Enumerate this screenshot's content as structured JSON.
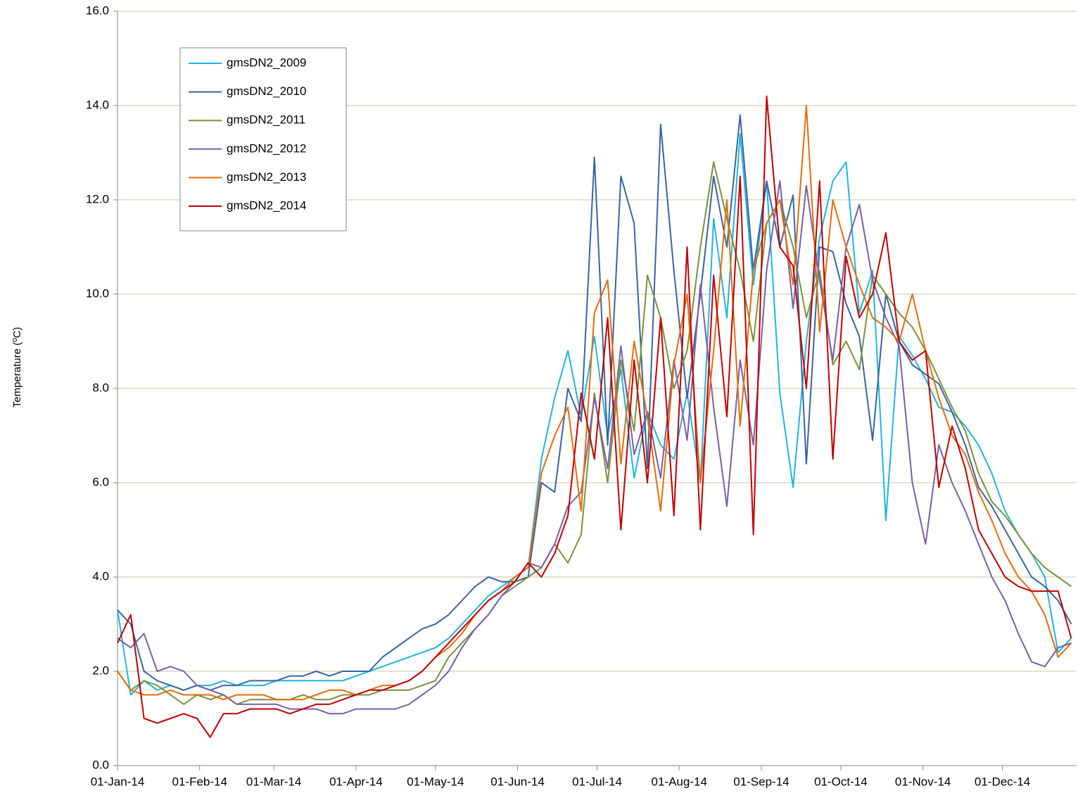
{
  "chart_data": {
    "type": "line",
    "y_label": "Temperature (ºC)",
    "x": [
      0,
      5,
      10,
      15,
      20,
      25,
      30,
      35,
      40,
      45,
      50,
      55,
      60,
      65,
      70,
      75,
      80,
      85,
      90,
      95,
      100,
      105,
      110,
      115,
      120,
      125,
      130,
      135,
      140,
      145,
      150,
      155,
      160,
      165,
      170,
      175,
      180,
      185,
      190,
      195,
      200,
      205,
      210,
      215,
      220,
      225,
      230,
      235,
      240,
      245,
      250,
      255,
      260,
      265,
      270,
      275,
      280,
      285,
      290,
      295,
      300,
      305,
      310,
      315,
      320,
      325,
      330,
      335,
      340,
      345,
      350,
      355,
      360
    ],
    "xlim": [
      0,
      362
    ],
    "xticks": [
      {
        "value": 0,
        "label": "01-Jan-14"
      },
      {
        "value": 31,
        "label": "01-Feb-14"
      },
      {
        "value": 59,
        "label": "01-Mar-14"
      },
      {
        "value": 90,
        "label": "01-Apr-14"
      },
      {
        "value": 120,
        "label": "01-May-14"
      },
      {
        "value": 151,
        "label": "01-Jun-14"
      },
      {
        "value": 181,
        "label": "01-Jul-14"
      },
      {
        "value": 212,
        "label": "01-Aug-14"
      },
      {
        "value": 243,
        "label": "01-Sep-14"
      },
      {
        "value": 273,
        "label": "01-Oct-14"
      },
      {
        "value": 304,
        "label": "01-Nov-14"
      },
      {
        "value": 334,
        "label": "01-Dec-14"
      }
    ],
    "ylim": [
      0,
      16
    ],
    "yticks": [
      {
        "value": 0,
        "label": "0.0"
      },
      {
        "value": 2,
        "label": "2.0"
      },
      {
        "value": 4,
        "label": "4.0"
      },
      {
        "value": 6,
        "label": "6.0"
      },
      {
        "value": 8,
        "label": "8.0"
      },
      {
        "value": 10,
        "label": "10.0"
      },
      {
        "value": 12,
        "label": "12.0"
      },
      {
        "value": 14,
        "label": "14.0"
      },
      {
        "value": 16,
        "label": "16.0"
      }
    ],
    "grid": true,
    "legend": "upper left",
    "series": [
      {
        "name": "gmsDN2_2009",
        "color": "#1fb4e4",
        "values": [
          3.3,
          1.5,
          1.8,
          1.6,
          1.7,
          1.6,
          1.7,
          1.7,
          1.8,
          1.7,
          1.7,
          1.7,
          1.8,
          1.8,
          1.8,
          1.8,
          1.8,
          1.8,
          1.9,
          2.0,
          2.1,
          2.2,
          2.3,
          2.4,
          2.5,
          2.7,
          3.0,
          3.3,
          3.6,
          3.8,
          4.0,
          4.2,
          6.5,
          7.8,
          8.8,
          7.4,
          9.1,
          7.0,
          8.4,
          6.1,
          7.5,
          6.8,
          6.5,
          7.9,
          6.0,
          11.6,
          9.5,
          13.4,
          10.2,
          12.4,
          7.9,
          5.9,
          9.0,
          11.2,
          12.4,
          12.8,
          9.6,
          10.5,
          5.2,
          9.1,
          8.7,
          8.2,
          7.6,
          7.5,
          7.2,
          6.8,
          6.2,
          5.4,
          4.9,
          4.5,
          4.0,
          2.4,
          2.7
        ]
      },
      {
        "name": "gmsDN2_2010",
        "color": "#3a64a0",
        "values": [
          3.3,
          3.0,
          2.0,
          1.8,
          1.7,
          1.6,
          1.7,
          1.6,
          1.7,
          1.7,
          1.8,
          1.8,
          1.8,
          1.9,
          1.9,
          2.0,
          1.9,
          2.0,
          2.0,
          2.0,
          2.3,
          2.5,
          2.7,
          2.9,
          3.0,
          3.2,
          3.5,
          3.8,
          4.0,
          3.9,
          3.9,
          4.0,
          6.0,
          5.8,
          8.0,
          7.3,
          12.9,
          6.8,
          12.5,
          11.5,
          6.3,
          13.6,
          10.5,
          7.8,
          10.0,
          12.5,
          11.0,
          13.8,
          10.5,
          12.4,
          11.0,
          12.1,
          6.4,
          11.0,
          10.9,
          9.8,
          9.1,
          6.9,
          10.0,
          9.0,
          8.5,
          8.3,
          8.1,
          7.5,
          6.8,
          5.9,
          5.5,
          5.0,
          4.5,
          4.0,
          3.8,
          3.5,
          3.0
        ]
      },
      {
        "name": "gmsDN2_2011",
        "color": "#77933c",
        "values": [
          2.0,
          1.6,
          1.8,
          1.7,
          1.5,
          1.3,
          1.5,
          1.4,
          1.5,
          1.3,
          1.4,
          1.4,
          1.4,
          1.4,
          1.5,
          1.4,
          1.4,
          1.5,
          1.5,
          1.5,
          1.6,
          1.6,
          1.6,
          1.7,
          1.8,
          2.3,
          2.6,
          2.9,
          3.2,
          3.6,
          3.8,
          4.0,
          4.2,
          4.7,
          4.3,
          4.9,
          7.9,
          6.0,
          8.6,
          7.1,
          10.4,
          9.5,
          8.0,
          8.8,
          11.0,
          12.8,
          11.6,
          10.5,
          9.0,
          11.5,
          12.0,
          11.0,
          9.5,
          10.5,
          8.5,
          9.0,
          8.4,
          10.4,
          10.0,
          9.6,
          9.3,
          8.8,
          8.2,
          7.6,
          7.1,
          6.2,
          5.6,
          5.3,
          4.9,
          4.5,
          4.2,
          4.0,
          3.8
        ]
      },
      {
        "name": "gmsDN2_2012",
        "color": "#7b5ea7",
        "values": [
          2.7,
          2.5,
          2.8,
          2.0,
          2.1,
          2.0,
          1.7,
          1.6,
          1.5,
          1.3,
          1.3,
          1.3,
          1.3,
          1.2,
          1.2,
          1.2,
          1.1,
          1.1,
          1.2,
          1.2,
          1.2,
          1.2,
          1.3,
          1.5,
          1.7,
          2.0,
          2.5,
          2.9,
          3.2,
          3.6,
          3.9,
          4.3,
          4.2,
          4.7,
          5.5,
          5.8,
          7.8,
          6.3,
          8.9,
          6.6,
          7.5,
          6.1,
          8.6,
          6.9,
          10.2,
          7.6,
          5.5,
          8.6,
          6.8,
          10.5,
          12.4,
          9.7,
          12.3,
          10.3,
          8.6,
          11.0,
          11.9,
          10.3,
          9.5,
          8.9,
          6.0,
          4.7,
          6.8,
          6.0,
          5.4,
          4.7,
          4.0,
          3.5,
          2.8,
          2.2,
          2.1,
          2.5,
          2.6
        ]
      },
      {
        "name": "gmsDN2_2013",
        "color": "#e46c0a",
        "values": [
          2.0,
          1.6,
          1.5,
          1.5,
          1.6,
          1.5,
          1.5,
          1.5,
          1.4,
          1.5,
          1.5,
          1.5,
          1.4,
          1.4,
          1.4,
          1.5,
          1.6,
          1.6,
          1.5,
          1.6,
          1.7,
          1.7,
          1.8,
          2.0,
          2.3,
          2.5,
          2.8,
          3.2,
          3.5,
          3.7,
          4.0,
          4.2,
          6.2,
          7.0,
          7.6,
          5.4,
          9.6,
          10.3,
          6.4,
          9.0,
          7.4,
          5.4,
          8.5,
          10.0,
          6.0,
          8.8,
          12.0,
          7.2,
          10.5,
          11.5,
          12.0,
          10.2,
          14.0,
          9.2,
          12.0,
          11.0,
          10.2,
          9.5,
          9.3,
          9.0,
          10.0,
          8.8,
          7.8,
          7.0,
          6.6,
          5.8,
          5.2,
          4.5,
          4.0,
          3.7,
          3.2,
          2.3,
          2.6
        ]
      },
      {
        "name": "gmsDN2_2014",
        "color": "#c00000",
        "values": [
          2.6,
          3.2,
          1.0,
          0.9,
          1.0,
          1.1,
          1.0,
          0.6,
          1.1,
          1.1,
          1.2,
          1.2,
          1.2,
          1.1,
          1.2,
          1.3,
          1.3,
          1.4,
          1.5,
          1.6,
          1.6,
          1.7,
          1.8,
          2.0,
          2.3,
          2.6,
          2.9,
          3.2,
          3.5,
          3.7,
          3.9,
          4.3,
          4.0,
          4.5,
          5.3,
          7.9,
          6.5,
          9.5,
          5.0,
          8.6,
          6.0,
          9.5,
          5.3,
          11.0,
          5.0,
          10.4,
          7.4,
          12.5,
          4.9,
          14.2,
          11.0,
          10.6,
          8.0,
          12.4,
          6.5,
          10.8,
          9.5,
          10.0,
          11.3,
          9.0,
          8.6,
          8.8,
          5.9,
          7.2,
          6.3,
          5.0,
          4.5,
          4.0,
          3.8,
          3.7,
          3.7,
          3.7,
          2.7
        ]
      }
    ]
  }
}
